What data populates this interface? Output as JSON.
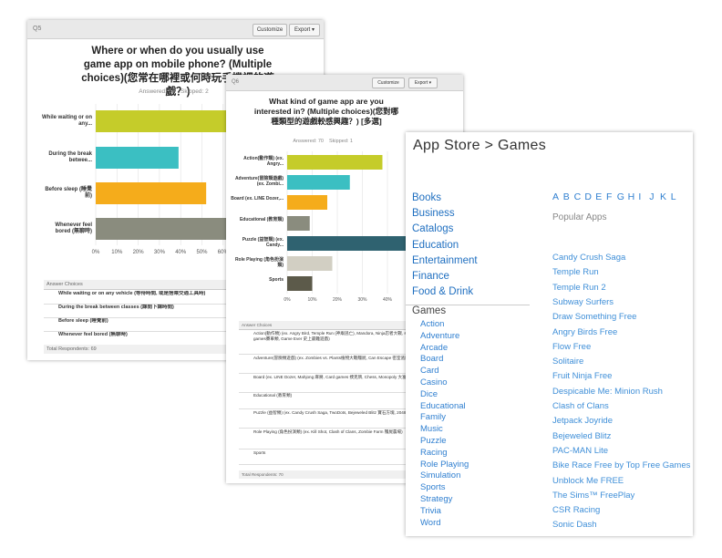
{
  "surveys": [
    {
      "question_no": "Q5",
      "buttons": [
        "Customize",
        "Export ▾"
      ],
      "title": "Where or when do you usually use game app on mobile phone? (Multiple choices)(您常在哪裡或何時玩手機裡的遊戲？)",
      "answered": "Answered: 69",
      "skipped": "Skipped: 2",
      "chart": {
        "type": "bar",
        "orientation": "horizontal",
        "categories": [
          "While waiting or on any...",
          "During the break betwee...",
          "Before sleep (睡覺前)",
          "Whenever feel bored (無聊時)"
        ],
        "values": [
          75,
          39,
          52,
          65
        ],
        "colors": [
          "#c5cc2a",
          "#3bbfc2",
          "#f5ac1b",
          "#8a8c7e"
        ],
        "xlim": [
          0,
          100
        ],
        "xticks": [
          {
            "value": 0,
            "label": "0%"
          },
          {
            "value": 10,
            "label": "10%"
          },
          {
            "value": 20,
            "label": "20%"
          },
          {
            "value": 30,
            "label": "30%"
          },
          {
            "value": 40,
            "label": "40%"
          },
          {
            "value": 50,
            "label": "50%"
          },
          {
            "value": 60,
            "label": "60%"
          }
        ]
      },
      "table": {
        "header": "Answer Choices",
        "rows": [
          "While waiting or on any vehicle (等待時間, 或是搭乘交通工具時)",
          "During the break between classes (課間下課時間)",
          "Before sleep (睡覺前)",
          "Whenever feel bored (無聊時)"
        ],
        "total": "Total Respondents: 69"
      }
    },
    {
      "question_no": "Q6",
      "buttons": [
        "Customize",
        "Export ▾"
      ],
      "title": "What kind of game app are you interested in? (Multiple choices)(您對哪種類型的遊戲較感興趣？) [多選]",
      "answered": "Answered: 70",
      "skipped": "Skipped: 1",
      "chart": {
        "type": "bar",
        "orientation": "horizontal",
        "categories": [
          "Action(動作類) (ex. Angry...",
          "Adventure(冒險類遊戲) (ex. Zombi...",
          "Board (ex. LINE Dozer,...",
          "Educational (教育類)",
          "Puzzle (益智類) (ex. Candy...",
          "Role Playing (角色扮演類)",
          "Sports"
        ],
        "values": [
          38,
          25,
          16,
          9,
          55,
          18,
          10
        ],
        "colors": [
          "#c5cc2a",
          "#3bbfc2",
          "#f5ac1b",
          "#8a8c7e",
          "#2f6270",
          "#d2cfc3",
          "#5c5a4a"
        ],
        "xlim": [
          0,
          100
        ],
        "xticks": [
          {
            "value": 0,
            "label": "0%"
          },
          {
            "value": 10,
            "label": "10%"
          },
          {
            "value": 20,
            "label": "20%"
          },
          {
            "value": 30,
            "label": "30%"
          },
          {
            "value": 40,
            "label": "40%"
          },
          {
            "value": 50,
            "label": "50%"
          }
        ]
      },
      "table": {
        "header": "Answer Choices",
        "rows": [
          "Action(動作類) (ex. Angry Bird, Temple Run (神廟逃亡), Mandora, Ninja忍者大戰, shooting games射擊類, racing games賽車類, Game Ever 史上最難遊戲)",
          "Adventure(冒險類遊戲) (ex. Zombies vs. Plants植物大戰殭屍, Can Escape 密室逃脫)",
          "Board (ex. LINE Dozer, Mahjong 麻將, Card games 撲克牌, Chess, Monopoly 大富翁)",
          "Educational (教育類)",
          "Puzzle (益智類) (ex. Candy Crush Saga, TwoDots, Bejeweled Blitz 寶石方塊, 2048, LINE POP)",
          "Role Playing (角色扮演類) (ex. Kill Shot, Clash of Clans, Zombie Farm 殭屍農場)",
          "Sports"
        ],
        "total": "Total Respondents: 70"
      }
    }
  ],
  "app_store": {
    "breadcrumb": "App Store > Games",
    "categories": [
      "Books",
      "Business",
      "Catalogs",
      "Education",
      "Entertainment",
      "Finance",
      "Food & Drink"
    ],
    "current": "Games",
    "subcategories": [
      "Action",
      "Adventure",
      "Arcade",
      "Board",
      "Card",
      "Casino",
      "Dice",
      "Educational",
      "Family",
      "Music",
      "Puzzle",
      "Racing",
      "Role Playing",
      "Simulation",
      "Sports",
      "Strategy",
      "Trivia",
      "Word"
    ],
    "letters": [
      "A",
      "B",
      "C",
      "D",
      "E",
      "F",
      "G",
      "H",
      "I",
      "J",
      "K",
      "L"
    ],
    "popular_title": "Popular Apps",
    "popular_apps": [
      "Candy Crush Saga",
      "Temple Run",
      "Temple Run 2",
      "Subway Surfers",
      "Draw Something Free",
      "Angry Birds Free",
      "Flow Free",
      "Solitaire",
      "Fruit Ninja Free",
      "Despicable Me: Minion Rush",
      "Clash of Clans",
      "Jetpack Joyride",
      "Bejeweled Blitz",
      "PAC-MAN Lite",
      "Bike Race Free by Top Free Games",
      "Unblock Me FREE",
      "The Sims™ FreePlay",
      "CSR Racing",
      "Sonic Dash"
    ]
  }
}
